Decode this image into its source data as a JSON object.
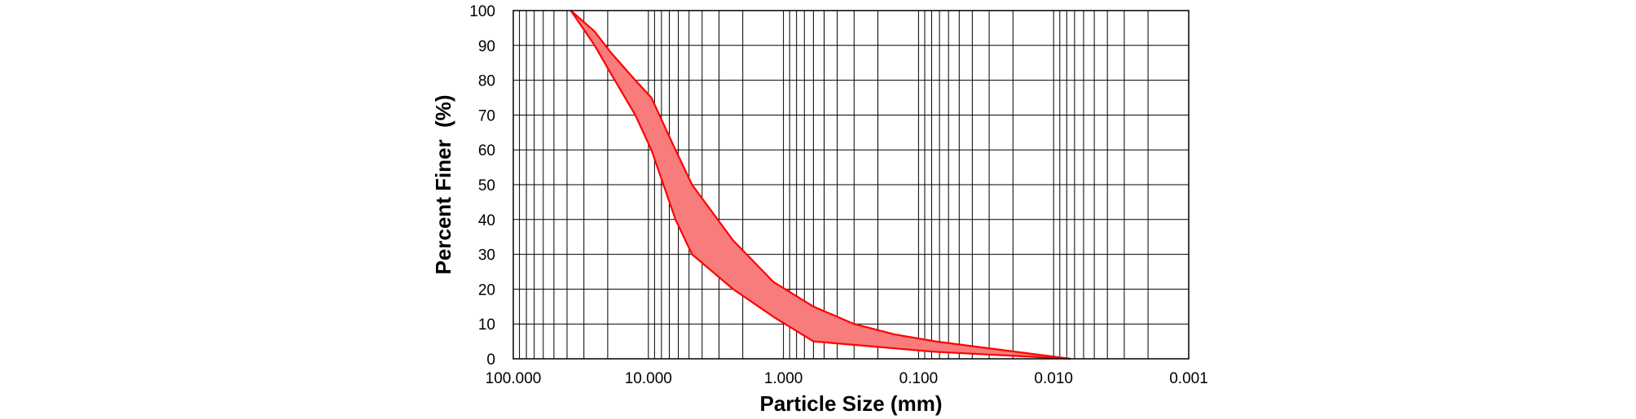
{
  "chart_data": {
    "type": "area",
    "title": "",
    "xlabel": "Particle Size (mm)",
    "ylabel": "Percent Finer  (%)",
    "x_scale": "log",
    "x_reversed": true,
    "xlim": [
      100,
      0.001
    ],
    "ylim": [
      0,
      100
    ],
    "x_tick_values": [
      100,
      10,
      1,
      0.1,
      0.01,
      0.001
    ],
    "x_tick_labels": [
      "100.000",
      "10.000",
      "1.000",
      "0.100",
      "0.010",
      "0.001"
    ],
    "y_ticks": [
      0,
      10,
      20,
      30,
      40,
      50,
      60,
      70,
      80,
      90,
      100
    ],
    "grid": true,
    "legend": "none",
    "colors": {
      "band_fill": "#f87c7c",
      "band_line": "#ff0000",
      "grid": "#000000"
    },
    "series": [
      {
        "x": [
          37.5,
          25,
          19,
          12.5,
          9.5,
          6.3,
          4.75,
          2.36,
          1.18,
          0.6,
          0.3,
          0.15,
          0.075,
          0.0075
        ],
        "values": [
          100,
          94,
          88,
          80,
          75,
          60,
          50,
          34,
          22,
          15,
          10,
          7,
          5,
          0
        ]
      },
      {
        "x": [
          37.5,
          25,
          19,
          12.5,
          9.5,
          6.3,
          4.75,
          2.36,
          1.18,
          0.6,
          0.3,
          0.15,
          0.075,
          0.0075
        ],
        "values": [
          100,
          90,
          82,
          70,
          60,
          40,
          30,
          20,
          12,
          5,
          4,
          3,
          2,
          0
        ]
      }
    ]
  }
}
